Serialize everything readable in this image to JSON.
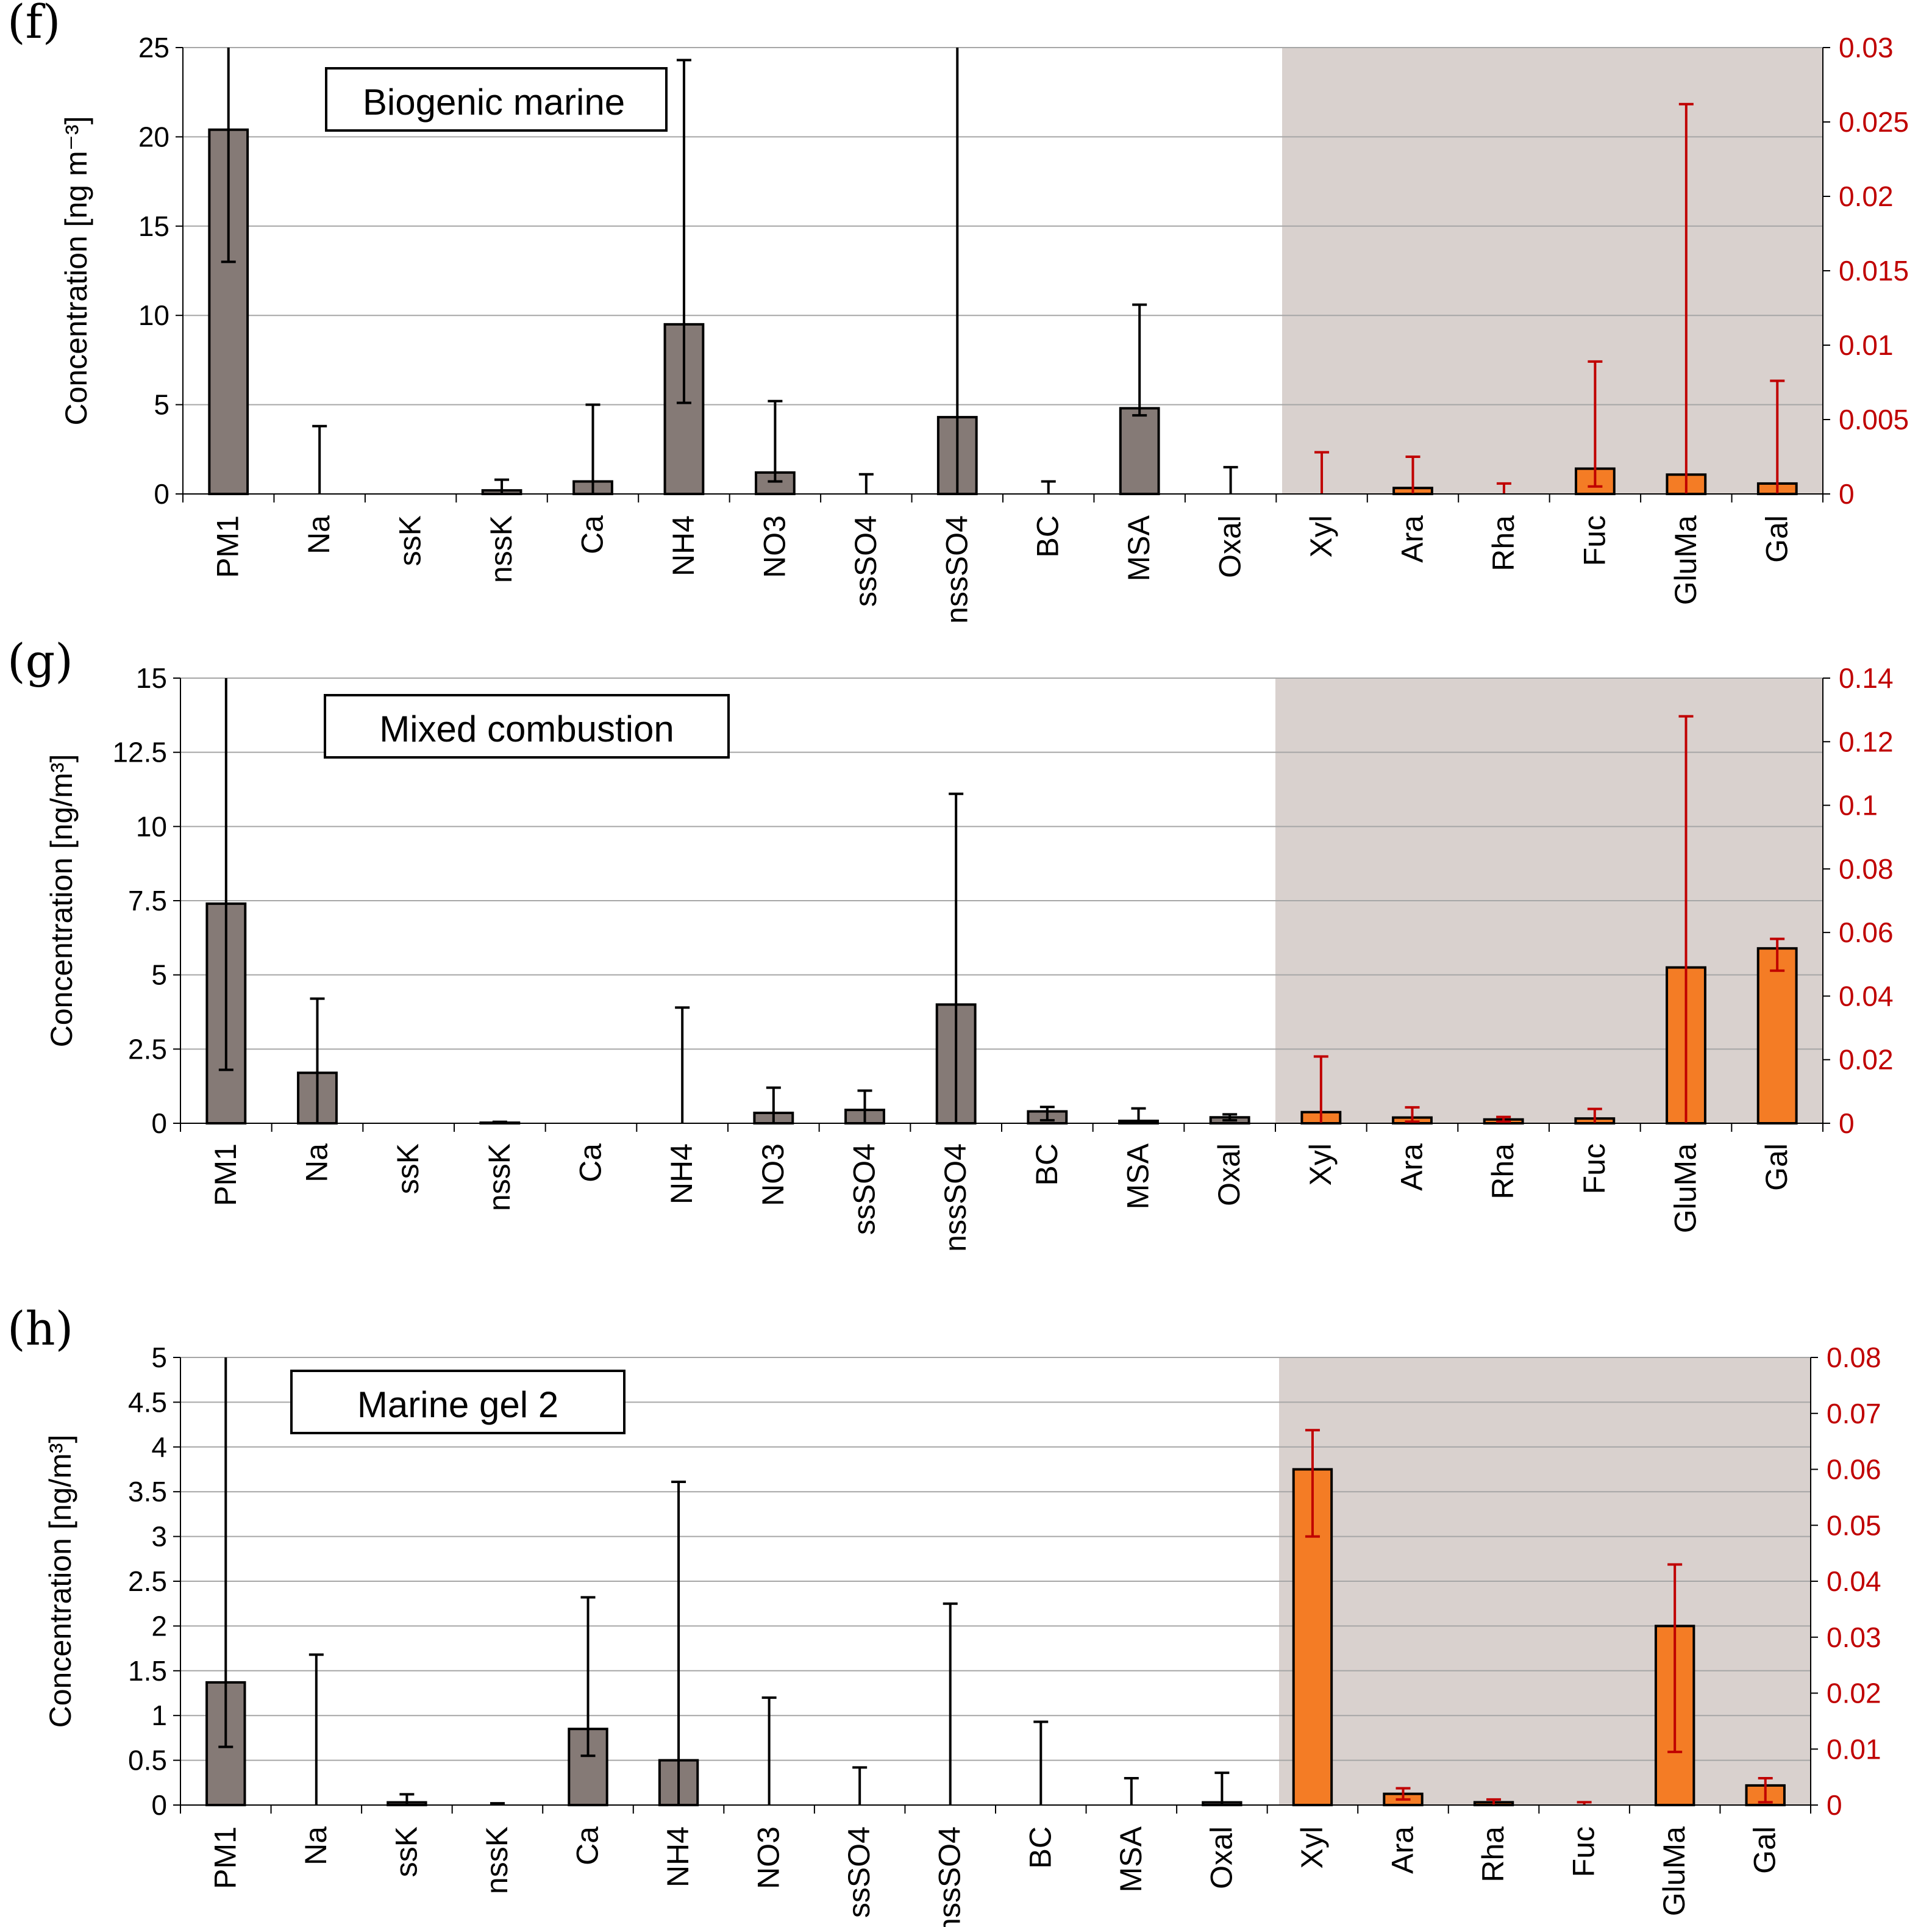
{
  "chart_data": [
    {
      "type": "bar",
      "panel": "(f)",
      "title": "Biogenic marine",
      "ylabel": "Concentration [ng m⁻³]",
      "ylim_left": [
        0,
        25
      ],
      "left_ticks": [
        0,
        5,
        10,
        15,
        20,
        25
      ],
      "left_tick_labels": [
        "0",
        "5",
        "10",
        "15",
        "20",
        "25"
      ],
      "ylim_right": [
        0,
        0.03
      ],
      "right_ticks": [
        0,
        0.005,
        0.01,
        0.015,
        0.02,
        0.025,
        0.03
      ],
      "right_tick_labels": [
        "0",
        "0.005",
        "0.01",
        "0.015",
        "0.02",
        "0.025",
        "0.03"
      ],
      "categories": [
        "PM1",
        "Na",
        "ssK",
        "nssK",
        "Ca",
        "NH4",
        "NO3",
        "ssSO4",
        "nssSO4",
        "BC",
        "MSA",
        "Oxal",
        "Xyl",
        "Ara",
        "Rha",
        "Fuc",
        "GluMa",
        "Gal"
      ],
      "axis": [
        "left",
        "left",
        "left",
        "left",
        "left",
        "left",
        "left",
        "left",
        "left",
        "left",
        "left",
        "left",
        "right",
        "right",
        "right",
        "right",
        "right",
        "right"
      ],
      "values": [
        20.4,
        0,
        0,
        0.2,
        0.7,
        9.5,
        1.2,
        0,
        4.3,
        0,
        4.8,
        0,
        0,
        0.0004,
        0,
        0.0017,
        0.0013,
        0.0007
      ],
      "err_low": [
        13.0,
        0,
        0,
        0,
        0,
        5.1,
        0.7,
        0,
        0,
        0,
        4.4,
        0,
        0,
        0,
        0,
        0.0005,
        0,
        0
      ],
      "err_high": [
        25,
        3.8,
        0,
        0.8,
        5.0,
        24.3,
        5.2,
        1.1,
        25,
        0.7,
        10.6,
        1.5,
        0.0028,
        0.0025,
        0.0007,
        0.0089,
        0.0262,
        0.0076
      ],
      "shaded_from": "Xyl"
    },
    {
      "type": "bar",
      "panel": "(g)",
      "title": "Mixed combustion",
      "ylabel": "Concentration [ng/m³]",
      "ylim_left": [
        0,
        15
      ],
      "left_ticks": [
        0,
        2.5,
        5,
        7.5,
        10,
        12.5,
        15
      ],
      "left_tick_labels": [
        "0",
        "2.5",
        "5",
        "7.5",
        "10",
        "12.5",
        "15"
      ],
      "ylim_right": [
        0,
        0.14
      ],
      "right_ticks": [
        0,
        0.02,
        0.04,
        0.06,
        0.08,
        0.1,
        0.12,
        0.14
      ],
      "right_tick_labels": [
        "0",
        "0.02",
        "0.04",
        "0.06",
        "0.08",
        "0.1",
        "0.12",
        "0.14"
      ],
      "categories": [
        "PM1",
        "Na",
        "ssK",
        "nssK",
        "Ca",
        "NH4",
        "NO3",
        "ssSO4",
        "nssSO4",
        "BC",
        "MSA",
        "Oxal",
        "Xyl",
        "Ara",
        "Rha",
        "Fuc",
        "GluMa",
        "Gal"
      ],
      "axis": [
        "left",
        "left",
        "left",
        "left",
        "left",
        "left",
        "left",
        "left",
        "left",
        "left",
        "left",
        "left",
        "right",
        "right",
        "right",
        "right",
        "right",
        "right"
      ],
      "values": [
        7.4,
        1.7,
        0,
        0.02,
        0,
        0,
        0.35,
        0.45,
        4.0,
        0.4,
        0.08,
        0.2,
        0.0035,
        0.0018,
        0.0012,
        0.0015,
        0.049,
        0.055
      ],
      "err_low": [
        1.8,
        0,
        0,
        0,
        0,
        0,
        0,
        0,
        0,
        0.1,
        0,
        0.1,
        0,
        0.0005,
        0.0005,
        0,
        0,
        0.048
      ],
      "err_high": [
        15,
        4.2,
        0,
        0.05,
        0,
        3.9,
        1.2,
        1.1,
        11.1,
        0.55,
        0.5,
        0.3,
        0.021,
        0.005,
        0.002,
        0.0045,
        0.128,
        0.058
      ],
      "shaded_from": "Xyl"
    },
    {
      "type": "bar",
      "panel": "(h)",
      "title": "Marine gel 2",
      "ylabel": "Concentration [ng/m³]",
      "ylim_left": [
        0,
        5
      ],
      "left_ticks": [
        0,
        0.5,
        1,
        1.5,
        2,
        2.5,
        3,
        3.5,
        4,
        4.5,
        5
      ],
      "left_tick_labels": [
        "0",
        "0.5",
        "1",
        "1.5",
        "2",
        "2.5",
        "3",
        "3.5",
        "4",
        "4.5",
        "5"
      ],
      "ylim_right": [
        0,
        0.08
      ],
      "right_ticks": [
        0,
        0.01,
        0.02,
        0.03,
        0.04,
        0.05,
        0.06,
        0.07,
        0.08
      ],
      "right_tick_labels": [
        "0",
        "0.01",
        "0.02",
        "0.03",
        "0.04",
        "0.05",
        "0.06",
        "0.07",
        "0.08"
      ],
      "categories": [
        "PM1",
        "Na",
        "ssK",
        "nssK",
        "Ca",
        "NH4",
        "NO3",
        "ssSO4",
        "nssSO4",
        "BC",
        "MSA",
        "Oxal",
        "Xyl",
        "Ara",
        "Rha",
        "Fuc",
        "GluMa",
        "Gal"
      ],
      "axis": [
        "left",
        "left",
        "left",
        "left",
        "left",
        "left",
        "left",
        "left",
        "left",
        "left",
        "left",
        "left",
        "right",
        "right",
        "right",
        "right",
        "right",
        "right"
      ],
      "values": [
        1.37,
        0,
        0.03,
        0,
        0.85,
        0.5,
        0,
        0,
        0,
        0,
        0,
        0.03,
        0.06,
        0.002,
        0.0005,
        0,
        0.032,
        0.0035
      ],
      "err_low": [
        0.65,
        0,
        0,
        0,
        0.55,
        0,
        0,
        0,
        0,
        0,
        0,
        0,
        0.048,
        0.001,
        0,
        0,
        0.0095,
        0.0005
      ],
      "err_high": [
        5,
        1.68,
        0.12,
        0.02,
        2.32,
        3.61,
        1.2,
        0.42,
        2.25,
        0.93,
        0.3,
        0.36,
        0.067,
        0.003,
        0.001,
        0.0005,
        0.043,
        0.0048
      ],
      "shaded_from": "Xyl"
    }
  ],
  "colors": {
    "left_bar": "#857a76",
    "right_bar": "#f47c25",
    "left_err": "#000000",
    "right_err": "#c00000",
    "right_axis_text": "#c00000",
    "shade": "#d9d1ce",
    "grid": "#a6a6a6"
  }
}
